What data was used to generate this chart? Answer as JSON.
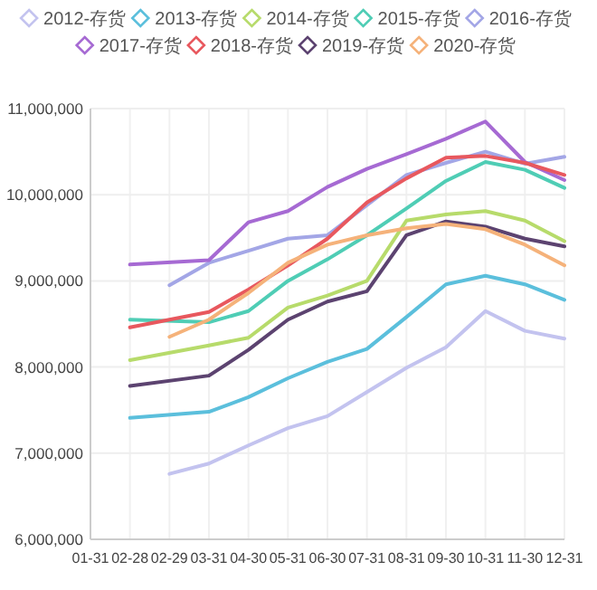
{
  "chart_data": {
    "type": "line",
    "categories": [
      "01-31",
      "02-28",
      "02-29",
      "03-31",
      "04-30",
      "05-31",
      "06-30",
      "07-31",
      "08-31",
      "09-30",
      "10-31",
      "11-30",
      "12-31"
    ],
    "ylim": [
      6000000,
      11000000
    ],
    "yticks": [
      {
        "value": 6000000,
        "label": "6,000,000"
      },
      {
        "value": 7000000,
        "label": "7,000,000"
      },
      {
        "value": 8000000,
        "label": "8,000,000"
      },
      {
        "value": 9000000,
        "label": "9,000,000"
      },
      {
        "value": 10000000,
        "label": "10,000,000"
      },
      {
        "value": 11000000,
        "label": "11,000,000"
      }
    ],
    "grid": true,
    "legend": "top",
    "marker": "none",
    "line_style": "solid",
    "series": [
      {
        "name": "2012-存货",
        "color": "#c3c3ef",
        "values": [
          null,
          null,
          6760000,
          6880000,
          7090000,
          7290000,
          7430000,
          7710000,
          7990000,
          8230000,
          8650000,
          8420000,
          8330000
        ]
      },
      {
        "name": "2013-存货",
        "color": "#5bbfdc",
        "values": [
          null,
          7410000,
          null,
          7480000,
          7650000,
          7870000,
          8060000,
          8210000,
          8580000,
          8960000,
          9060000,
          8960000,
          8780000
        ]
      },
      {
        "name": "2014-存货",
        "color": "#b7db6b",
        "values": [
          null,
          8080000,
          null,
          8250000,
          8340000,
          8690000,
          8830000,
          9000000,
          9700000,
          9770000,
          9810000,
          9700000,
          9460000
        ]
      },
      {
        "name": "2015-存货",
        "color": "#4fcdb5",
        "values": [
          null,
          8550000,
          null,
          8520000,
          8650000,
          9000000,
          9250000,
          9530000,
          9840000,
          10160000,
          10380000,
          10290000,
          10080000
        ]
      },
      {
        "name": "2016-存货",
        "color": "#a3a6e6",
        "values": [
          null,
          null,
          8950000,
          9210000,
          9350000,
          9490000,
          9530000,
          9880000,
          10230000,
          10370000,
          10500000,
          10360000,
          10440000
        ]
      },
      {
        "name": "2017-存货",
        "color": "#a66ad3",
        "values": [
          null,
          9190000,
          null,
          9240000,
          9680000,
          9810000,
          10090000,
          10300000,
          10470000,
          10650000,
          10850000,
          10380000,
          10170000
        ]
      },
      {
        "name": "2018-存货",
        "color": "#e8585e",
        "values": [
          null,
          8460000,
          null,
          8640000,
          8900000,
          9180000,
          9490000,
          9910000,
          10190000,
          10430000,
          10450000,
          10370000,
          10230000
        ]
      },
      {
        "name": "2019-存货",
        "color": "#5c4370",
        "values": [
          null,
          7780000,
          null,
          7900000,
          8200000,
          8550000,
          8760000,
          8880000,
          9530000,
          9690000,
          9630000,
          9490000,
          9400000
        ]
      },
      {
        "name": "2020-存货",
        "color": "#f5b27a",
        "values": [
          null,
          null,
          8350000,
          8550000,
          8860000,
          9210000,
          9420000,
          9530000,
          9610000,
          9660000,
          9600000,
          9420000,
          9180000
        ]
      }
    ]
  }
}
